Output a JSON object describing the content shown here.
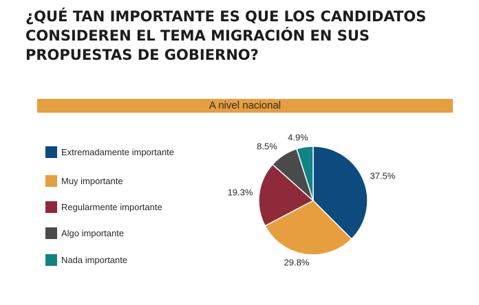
{
  "header": {
    "title": "¿QUÉ TAN IMPORTANTE ES QUE LOS CANDIDATOS CONSIDEREN EL TEMA MIGRACIÓN EN SUS PROPUESTAS DE GOBIERNO?",
    "banner": "A nivel nacional",
    "banner_color": "#E69E3F"
  },
  "chart_data": {
    "type": "pie",
    "title": "",
    "categories": [
      "Extremadamente importante",
      "Muy importante",
      "Regularmente importante",
      "Algo importante",
      "Nada importante"
    ],
    "values": [
      37.5,
      29.8,
      19.3,
      8.5,
      4.9
    ],
    "value_labels": [
      "37.5%",
      "29.8%",
      "19.3%",
      "8.5%",
      "4.9%"
    ],
    "colors": [
      "#0D4A7E",
      "#E69E3F",
      "#8F2A3A",
      "#4B4B4B",
      "#0F8484"
    ],
    "legend": "left"
  }
}
